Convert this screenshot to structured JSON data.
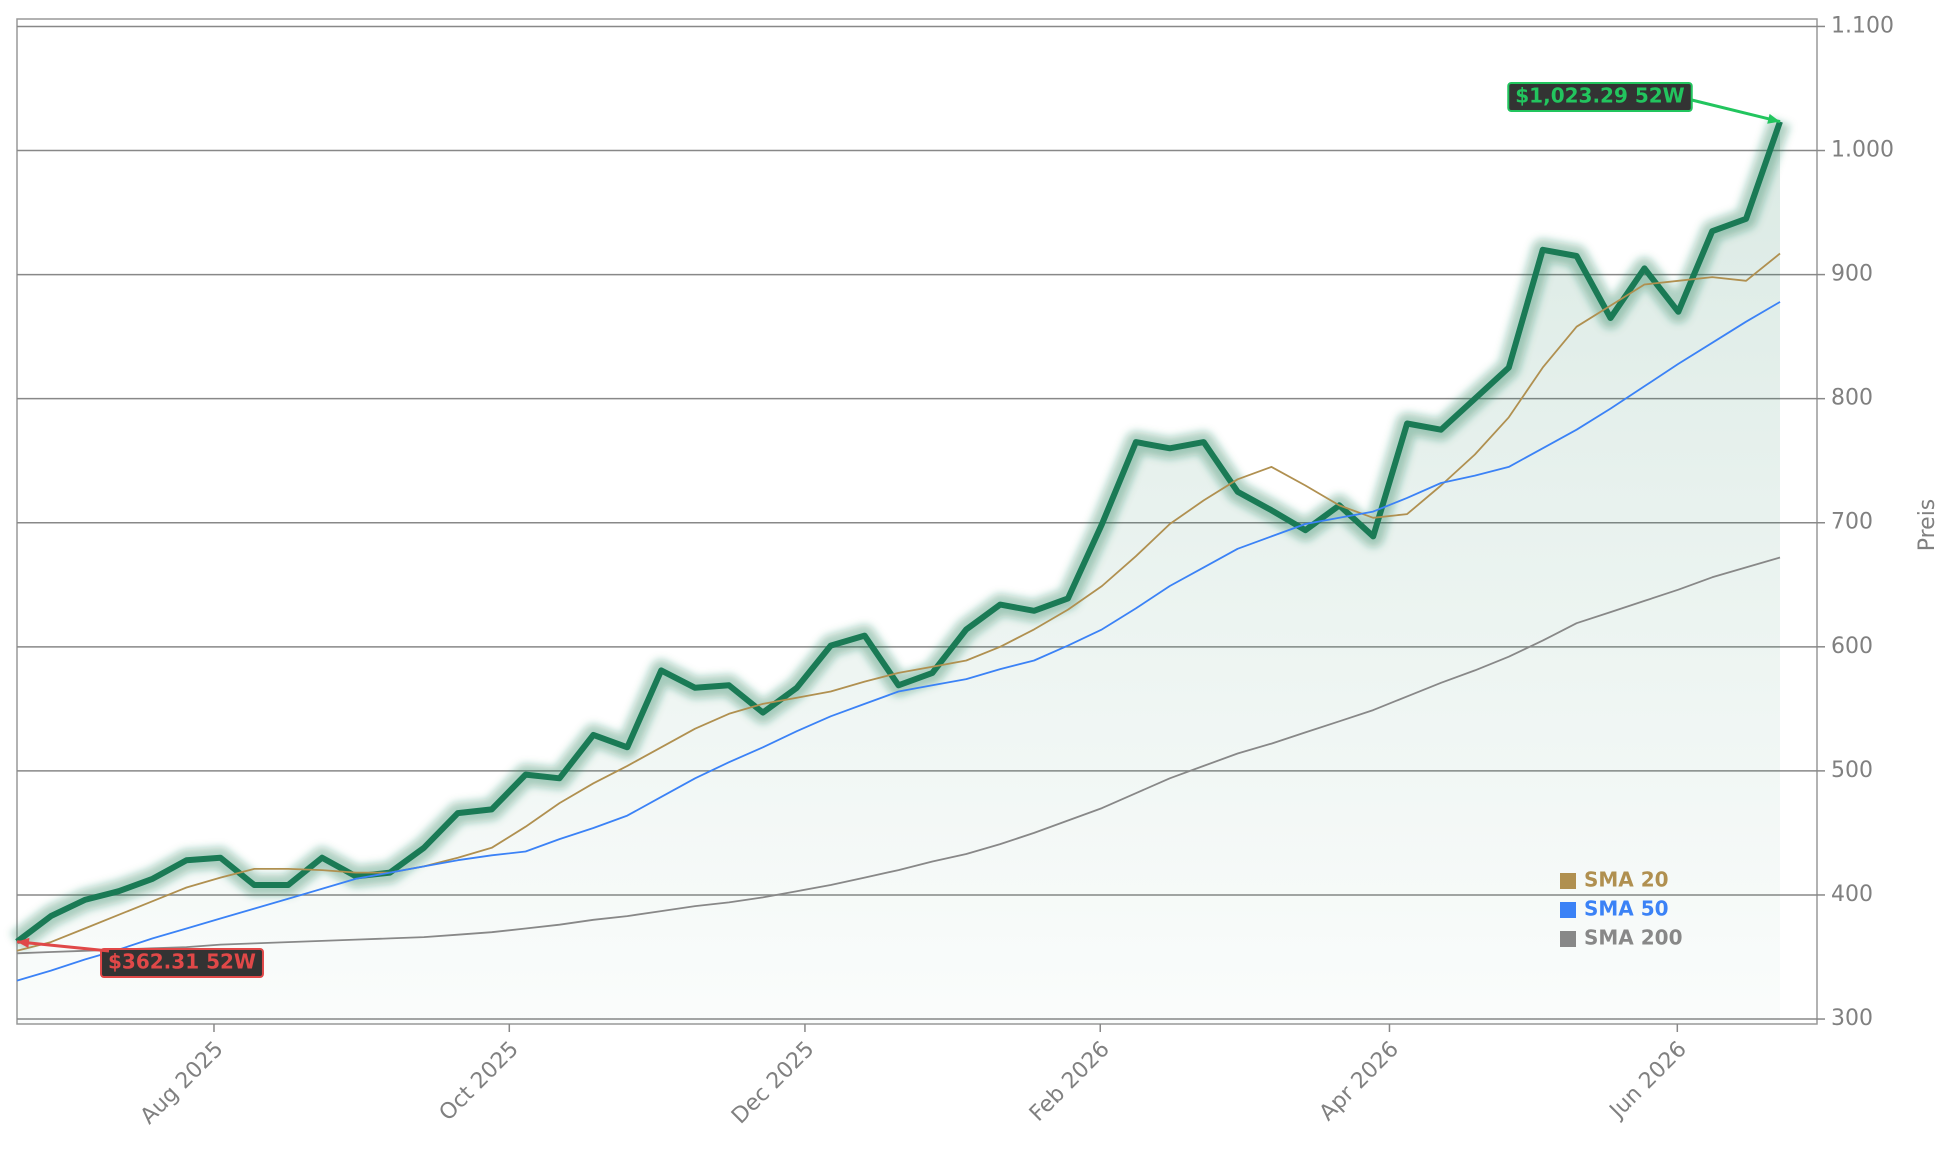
{
  "chart_data": {
    "type": "line",
    "y_label": "Preis",
    "categories": [
      null,
      null,
      null,
      null,
      null,
      null,
      null,
      null,
      null,
      null,
      null,
      null,
      null,
      null,
      null,
      null,
      null,
      null,
      null,
      null,
      null,
      null,
      null,
      null,
      null,
      null,
      null,
      null,
      null,
      null,
      null,
      null,
      null,
      null,
      null,
      null,
      null,
      null,
      null,
      null,
      null,
      null,
      null,
      null,
      null,
      null,
      null,
      null,
      null,
      null,
      null,
      null,
      null
    ],
    "xlim": [
      0,
      53.09
    ],
    "xticks": [
      {
        "value": 5.81,
        "label": "Aug 2025"
      },
      {
        "value": 14.52,
        "label": "Oct 2025"
      },
      {
        "value": 23.24,
        "label": "Dec 2025"
      },
      {
        "value": 31.95,
        "label": "Feb 2026"
      },
      {
        "value": 40.48,
        "label": "Apr 2026"
      },
      {
        "value": 48.97,
        "label": "Jun 2026"
      }
    ],
    "ylim": [
      296,
      1106
    ],
    "yticks": [
      300,
      400,
      500,
      600,
      700,
      800,
      900,
      {
        "value": 1000,
        "label": "1.000"
      },
      {
        "value": 1100,
        "label": "1.100"
      }
    ],
    "grid": true,
    "legend": "lower right",
    "series": [
      {
        "name": "Preis",
        "color": "#1a7a55",
        "values": [
          362.31,
          383,
          396,
          403,
          413,
          428,
          430,
          408,
          408,
          430,
          415,
          418,
          438,
          466,
          469,
          497,
          494,
          529,
          519,
          581,
          567,
          569,
          547,
          567,
          601,
          609,
          569,
          579,
          614,
          634,
          629,
          639,
          699,
          765,
          760,
          765,
          725,
          710,
          694,
          714,
          689,
          780,
          775,
          800,
          825,
          920,
          915,
          865,
          905,
          870,
          935,
          945,
          1023.29
        ]
      },
      {
        "name": "SMA 20",
        "color": "#b09050",
        "values": [
          355,
          362,
          373,
          384,
          395,
          406,
          414,
          421,
          421,
          420,
          418,
          418,
          423,
          430,
          438,
          455,
          474,
          490,
          504,
          519,
          534,
          546,
          554,
          559,
          564,
          572,
          579,
          584,
          589,
          600,
          614,
          630,
          649,
          673,
          699,
          718,
          735,
          745,
          730,
          714,
          704,
          707,
          730,
          755,
          785,
          825,
          858,
          875,
          892,
          895,
          898,
          895,
          917
        ]
      },
      {
        "name": "SMA 50",
        "color": "#3b82f6",
        "values": [
          331,
          339,
          348,
          356,
          365,
          373,
          381,
          389,
          397,
          405,
          413,
          418,
          423,
          428,
          432,
          435,
          445,
          454,
          464,
          479,
          494,
          507,
          519,
          532,
          544,
          554,
          564,
          569,
          574,
          582,
          589,
          601,
          614,
          631,
          649,
          664,
          679,
          689,
          699,
          704,
          709,
          720,
          732,
          738,
          745,
          760,
          775,
          792,
          810,
          828,
          845,
          862,
          878
        ]
      },
      {
        "name": "SMA 200",
        "color": "#888888",
        "values": [
          353,
          354,
          355,
          356,
          357,
          358,
          360,
          361,
          362,
          363,
          364,
          365,
          366,
          368,
          370,
          373,
          376,
          380,
          383,
          387,
          391,
          394,
          398,
          403,
          408,
          414,
          420,
          427,
          433,
          441,
          450,
          460,
          470,
          482,
          494,
          504,
          514,
          522,
          531,
          540,
          549,
          560,
          571,
          581,
          592,
          605,
          619,
          628,
          637,
          646,
          656,
          664,
          672
        ]
      }
    ],
    "annotations": [
      {
        "label": "$1,023.29 52W",
        "color": "#22c55e"
      },
      {
        "label": "$362.31 52W",
        "color": "#e04848"
      }
    ]
  }
}
